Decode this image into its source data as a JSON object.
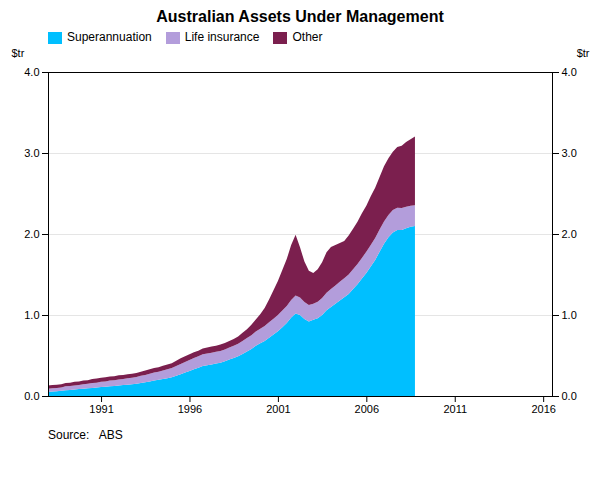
{
  "chart_data": {
    "type": "area",
    "stacked": true,
    "title": "Australian Assets Under Management",
    "ylabel": "$tr",
    "y2label": "$tr",
    "source": "Source:   ABS",
    "legend": "upper left",
    "grid": true,
    "xlim": [
      1988.0,
      2016.5
    ],
    "xticks": [
      1991,
      1996,
      2001,
      2006,
      2011,
      2016
    ],
    "ylim": [
      0,
      4
    ],
    "yticks": [
      0,
      1,
      2,
      3,
      4
    ],
    "y2lim": [
      0,
      4
    ],
    "y2ticks": [
      0,
      1,
      2,
      3,
      4
    ],
    "x": [
      1988,
      1988.25,
      1988.5,
      1988.75,
      1989,
      1989.25,
      1989.5,
      1989.75,
      1990,
      1990.25,
      1990.5,
      1990.75,
      1991,
      1991.25,
      1991.5,
      1991.75,
      1992,
      1992.25,
      1992.5,
      1992.75,
      1993,
      1993.25,
      1993.5,
      1993.75,
      1994,
      1994.25,
      1994.5,
      1994.75,
      1995,
      1995.25,
      1995.5,
      1995.75,
      1996,
      1996.25,
      1996.5,
      1996.75,
      1997,
      1997.25,
      1997.5,
      1997.75,
      1998,
      1998.25,
      1998.5,
      1998.75,
      1999,
      1999.25,
      1999.5,
      1999.75,
      2000,
      2000.25,
      2000.5,
      2000.75,
      2001,
      2001.25,
      2001.5,
      2001.75,
      2002,
      2002.25,
      2002.5,
      2002.75,
      2003,
      2003.25,
      2003.5,
      2003.75,
      2004,
      2004.25,
      2004.5,
      2004.75,
      2005,
      2005.25,
      2005.5,
      2005.75,
      2006,
      2006.25,
      2006.5,
      2006.75,
      2007,
      2007.25,
      2007.5,
      2007.75,
      2008,
      2008.25,
      2008.5,
      2008.75
    ],
    "series": [
      {
        "name": "Superannuation",
        "color": "#00BFFF",
        "values": [
          0.05,
          0.055,
          0.06,
          0.065,
          0.07,
          0.075,
          0.08,
          0.085,
          0.09,
          0.095,
          0.1,
          0.105,
          0.11,
          0.115,
          0.12,
          0.125,
          0.13,
          0.135,
          0.14,
          0.145,
          0.15,
          0.16,
          0.17,
          0.18,
          0.19,
          0.2,
          0.21,
          0.22,
          0.23,
          0.25,
          0.27,
          0.29,
          0.31,
          0.33,
          0.35,
          0.37,
          0.38,
          0.39,
          0.4,
          0.41,
          0.43,
          0.45,
          0.47,
          0.49,
          0.52,
          0.55,
          0.58,
          0.62,
          0.65,
          0.68,
          0.72,
          0.76,
          0.8,
          0.85,
          0.9,
          0.97,
          1.02,
          1.0,
          0.95,
          0.92,
          0.94,
          0.96,
          1.0,
          1.06,
          1.1,
          1.14,
          1.18,
          1.22,
          1.26,
          1.32,
          1.38,
          1.45,
          1.52,
          1.6,
          1.68,
          1.78,
          1.88,
          1.96,
          2.02,
          2.05,
          2.05,
          2.07,
          2.09,
          2.1
        ]
      },
      {
        "name": "Life insurance",
        "color": "#B39DDB",
        "values": [
          0.04,
          0.04,
          0.04,
          0.04,
          0.05,
          0.05,
          0.05,
          0.05,
          0.055,
          0.055,
          0.06,
          0.06,
          0.065,
          0.065,
          0.07,
          0.07,
          0.075,
          0.075,
          0.08,
          0.08,
          0.085,
          0.09,
          0.09,
          0.095,
          0.1,
          0.1,
          0.105,
          0.11,
          0.115,
          0.12,
          0.125,
          0.13,
          0.135,
          0.14,
          0.14,
          0.145,
          0.145,
          0.145,
          0.145,
          0.145,
          0.145,
          0.15,
          0.15,
          0.155,
          0.16,
          0.165,
          0.17,
          0.175,
          0.18,
          0.185,
          0.19,
          0.195,
          0.2,
          0.205,
          0.21,
          0.215,
          0.22,
          0.215,
          0.21,
          0.205,
          0.2,
          0.205,
          0.21,
          0.215,
          0.22,
          0.225,
          0.23,
          0.235,
          0.24,
          0.245,
          0.25,
          0.255,
          0.26,
          0.265,
          0.27,
          0.275,
          0.275,
          0.275,
          0.275,
          0.275,
          0.27,
          0.265,
          0.26,
          0.255
        ]
      },
      {
        "name": "Other",
        "color": "#7B1F4E",
        "values": [
          0.04,
          0.04,
          0.04,
          0.04,
          0.04,
          0.04,
          0.045,
          0.045,
          0.045,
          0.045,
          0.05,
          0.05,
          0.05,
          0.05,
          0.05,
          0.05,
          0.05,
          0.05,
          0.05,
          0.05,
          0.05,
          0.05,
          0.055,
          0.055,
          0.055,
          0.055,
          0.06,
          0.06,
          0.06,
          0.065,
          0.07,
          0.07,
          0.07,
          0.07,
          0.07,
          0.07,
          0.075,
          0.075,
          0.075,
          0.08,
          0.08,
          0.08,
          0.085,
          0.09,
          0.1,
          0.11,
          0.13,
          0.15,
          0.18,
          0.22,
          0.28,
          0.35,
          0.42,
          0.5,
          0.58,
          0.68,
          0.75,
          0.62,
          0.5,
          0.42,
          0.38,
          0.4,
          0.44,
          0.5,
          0.52,
          0.5,
          0.48,
          0.46,
          0.48,
          0.5,
          0.52,
          0.55,
          0.57,
          0.6,
          0.62,
          0.65,
          0.68,
          0.7,
          0.72,
          0.75,
          0.77,
          0.8,
          0.82,
          0.85
        ]
      }
    ]
  }
}
